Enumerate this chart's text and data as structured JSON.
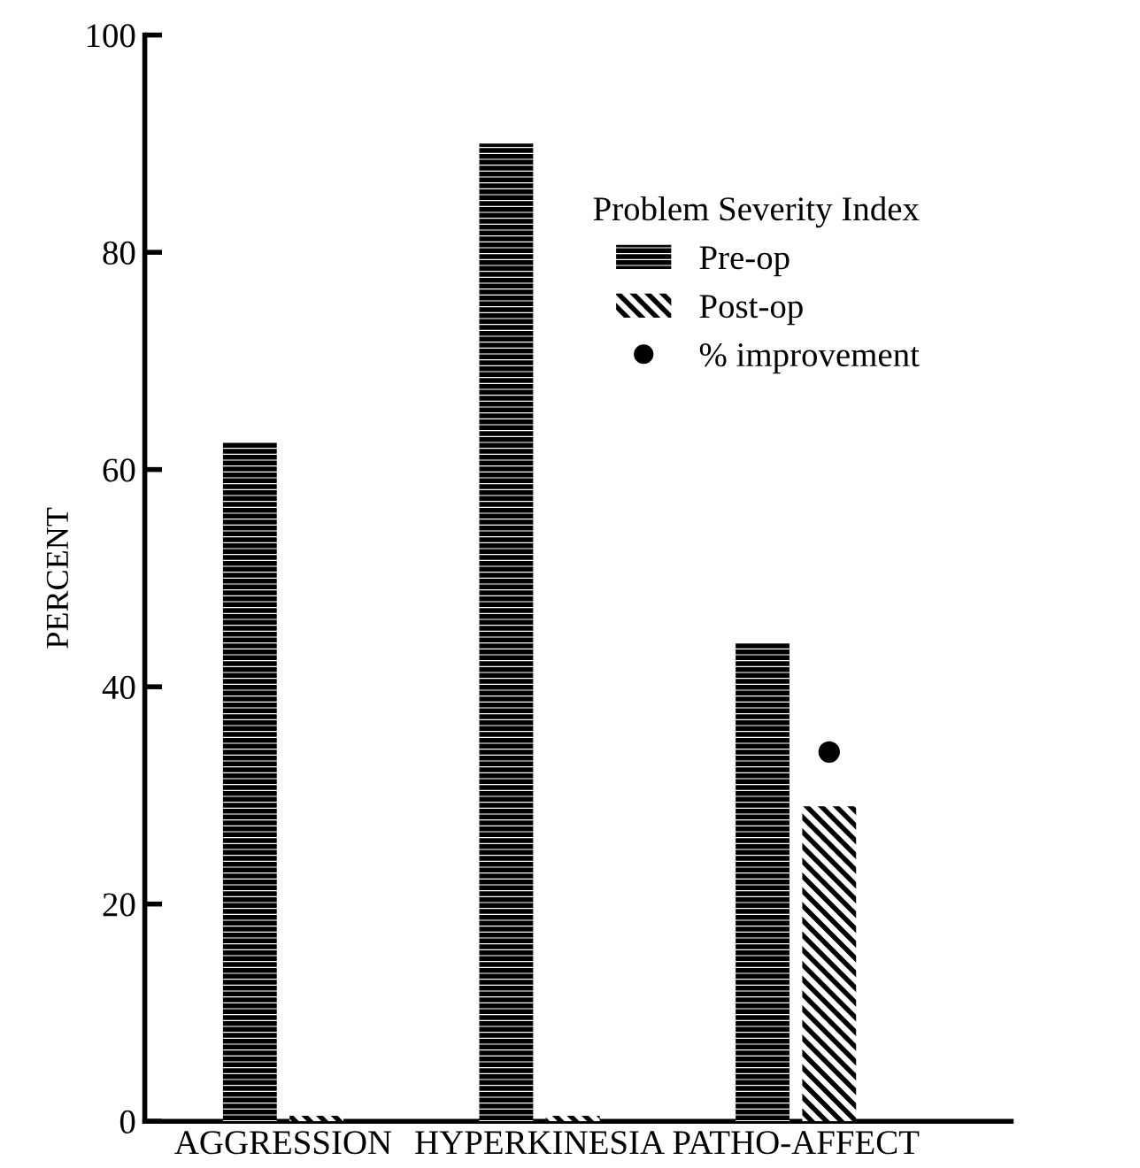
{
  "chart_data": {
    "type": "bar",
    "categories": [
      "AGGRESSION",
      "HYPERKINESIA",
      "PATHO-AFFECT"
    ],
    "ylabel": "PERCENT",
    "legend_title": "Problem Severity Index",
    "series": [
      {
        "name": "Pre-op",
        "color": "#000000",
        "values": [
          62.5,
          90,
          44
        ]
      },
      {
        "name": "Post-op",
        "color": "#000000",
        "values": [
          0.5,
          0.5,
          29
        ]
      },
      {
        "name": "% improvement",
        "type": "scatter",
        "color": "#000000",
        "values": [
          null,
          null,
          34
        ]
      }
    ],
    "ylim": [
      0,
      100
    ],
    "yticks": [
      0,
      20,
      40,
      60,
      80,
      100
    ],
    "grid": false,
    "legend": "top right",
    "marker": "circle"
  }
}
